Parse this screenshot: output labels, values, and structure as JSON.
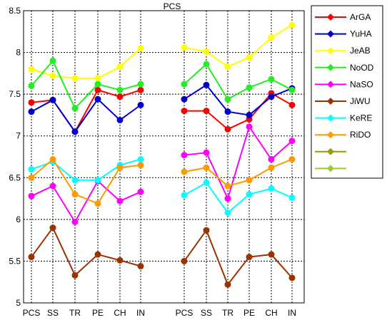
{
  "chart_data": {
    "type": "line",
    "title": "PCS",
    "x": [
      "PCS",
      "SS",
      "TR",
      "PE",
      "CH",
      "IN",
      "PCS",
      "SS",
      "TR",
      "PE",
      "CH",
      "IN"
    ],
    "yticks": [
      "5",
      "5.5",
      "6",
      "6.5",
      "7",
      "7.5",
      "8",
      "8.5"
    ],
    "ylim": [
      5,
      8.5
    ],
    "grid": true,
    "legend_position": "right",
    "series": [
      {
        "name": "ArGA",
        "color": "#ff0000",
        "groups": [
          [
            7.4,
            7.43,
            7.05,
            7.55,
            7.47,
            7.55
          ],
          [
            7.3,
            7.3,
            7.08,
            7.2,
            7.51,
            7.37
          ]
        ]
      },
      {
        "name": "YuHA",
        "color": "#0000cc",
        "groups": [
          [
            7.29,
            7.43,
            7.05,
            7.44,
            7.19,
            7.37
          ],
          [
            7.44,
            7.61,
            7.29,
            7.25,
            7.47,
            7.57
          ]
        ]
      },
      {
        "name": "JeAB",
        "color": "#ffff00",
        "groups": [
          [
            7.8,
            7.72,
            7.69,
            7.69,
            7.83,
            8.05
          ],
          [
            8.06,
            8.01,
            7.83,
            7.94,
            8.18,
            8.33
          ]
        ]
      },
      {
        "name": "NoOD",
        "color": "#22ee22",
        "groups": [
          [
            7.6,
            7.9,
            7.33,
            7.62,
            7.55,
            7.62
          ],
          [
            7.62,
            7.86,
            7.44,
            7.58,
            7.68,
            7.55
          ]
        ]
      },
      {
        "name": "NaSO",
        "color": "#ff00ff",
        "groups": [
          [
            6.28,
            6.4,
            5.97,
            6.46,
            6.22,
            6.33
          ],
          [
            6.77,
            6.8,
            6.25,
            7.11,
            6.72,
            6.94
          ]
        ]
      },
      {
        "name": "JiWU",
        "color": "#993300",
        "groups": [
          [
            5.55,
            5.9,
            5.33,
            5.58,
            5.51,
            5.44
          ],
          [
            5.5,
            5.87,
            5.22,
            5.55,
            5.58,
            5.3
          ]
        ]
      },
      {
        "name": "KeRE",
        "color": "#00ffff",
        "groups": [
          [
            6.6,
            6.69,
            6.47,
            6.47,
            6.65,
            6.72
          ],
          [
            6.29,
            6.44,
            6.08,
            6.3,
            6.37,
            6.26
          ]
        ]
      },
      {
        "name": "RiDO",
        "color": "#ff9900",
        "groups": [
          [
            6.5,
            6.72,
            6.3,
            6.19,
            6.62,
            6.65
          ],
          [
            6.57,
            6.62,
            6.4,
            6.47,
            6.62,
            6.72
          ]
        ]
      },
      {
        "name": "",
        "color": "#999900",
        "groups": []
      },
      {
        "name": "",
        "color": "#99cc33",
        "groups": []
      }
    ]
  }
}
